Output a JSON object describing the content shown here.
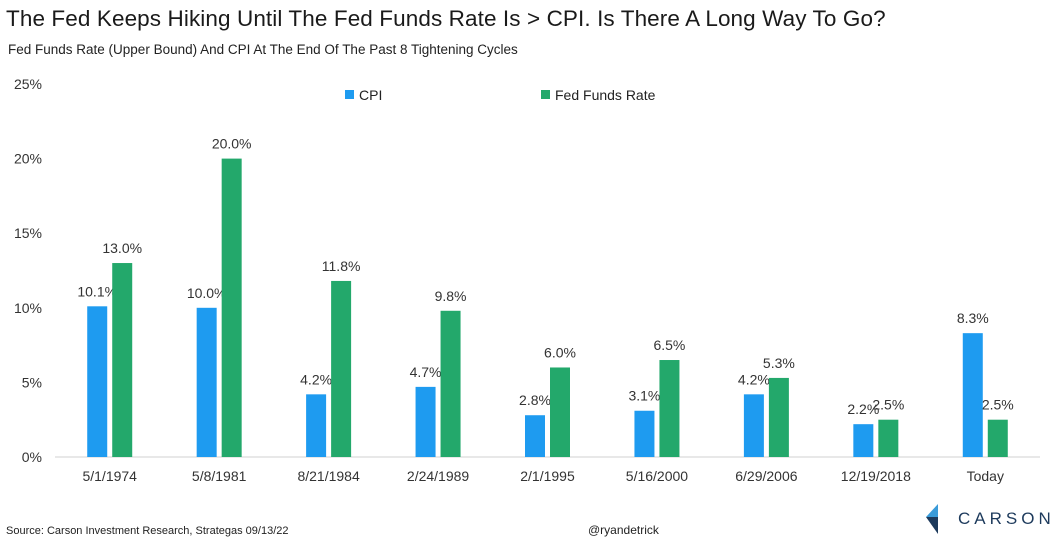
{
  "header": {
    "title": "The Fed Keeps Hiking Until The Fed Funds Rate Is > CPI. Is There A Long Way To Go?",
    "subtitle": "Fed Funds Rate (Upper Bound) And CPI At The End Of The Past 8 Tightening Cycles"
  },
  "footer": {
    "source": "Source: Carson Investment Research, Strategas 09/13/22",
    "handle": "@ryandetrick",
    "brand": "CARSON"
  },
  "chart_data": {
    "type": "bar",
    "categories": [
      "5/1/1974",
      "5/8/1981",
      "8/21/1984",
      "2/24/1989",
      "2/1/1995",
      "5/16/2000",
      "6/29/2006",
      "12/19/2018",
      "Today"
    ],
    "series": [
      {
        "name": "CPI",
        "values": [
          10.1,
          10.0,
          4.2,
          4.7,
          2.8,
          3.1,
          4.2,
          2.2,
          8.3
        ],
        "color": "#1e9bf0"
      },
      {
        "name": "Fed Funds Rate",
        "values": [
          13.0,
          20.0,
          11.8,
          9.8,
          6.0,
          6.5,
          5.3,
          2.5,
          2.5
        ],
        "color": "#23a86b"
      }
    ],
    "data_labels": {
      "CPI": [
        "10.1%",
        "10.0%",
        "4.2%",
        "4.7%",
        "2.8%",
        "3.1%",
        "4.2%",
        "2.2%",
        "8.3%"
      ],
      "Fed Funds Rate": [
        "13.0%",
        "20.0%",
        "11.8%",
        "9.8%",
        "6.0%",
        "6.5%",
        "5.3%",
        "2.5%",
        "2.5%"
      ]
    },
    "y_ticks": [
      "0%",
      "5%",
      "10%",
      "15%",
      "20%",
      "25%"
    ],
    "ylim": [
      0,
      25
    ],
    "grid": false,
    "legend_position": "top-center"
  }
}
